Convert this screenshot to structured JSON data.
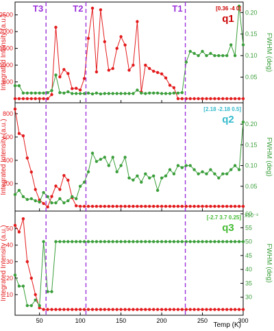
{
  "chart_data": [
    {
      "type": "line",
      "panel_label": "q1",
      "panel_label_color": "#cc0000",
      "q_vector": "[0.36 -4 0]",
      "q_vector_color": "#cc0000",
      "x_ticks": [],
      "ylim_left": [
        0,
        2800
      ],
      "yticks_left": [
        500,
        1000,
        1500,
        2000,
        2500
      ],
      "ylim_right": [
        0,
        0.218
      ],
      "yticks_right": [
        0.05,
        0.1,
        0.15,
        0.2
      ],
      "series": [
        {
          "axis": "left",
          "color": "#e31a1c",
          "x": [
            20,
            25,
            30,
            35,
            40,
            45,
            50,
            55,
            60,
            65,
            70,
            75,
            80,
            85,
            90,
            95,
            100,
            105,
            110,
            115,
            120,
            125,
            130,
            135,
            140,
            145,
            150,
            155,
            160,
            165,
            170,
            175,
            180,
            185,
            190,
            195,
            200,
            205,
            210,
            215,
            220,
            225,
            230,
            235,
            240,
            245,
            250,
            255,
            260,
            265,
            270,
            275,
            280,
            285,
            290,
            295,
            300
          ],
          "y": [
            0,
            0,
            0,
            0,
            0,
            0,
            0,
            0,
            0,
            120,
            2130,
            650,
            870,
            750,
            300,
            310,
            260,
            600,
            1800,
            2700,
            800,
            2650,
            1700,
            850,
            900,
            1500,
            1850,
            1600,
            850,
            1000,
            2300,
            200,
            1000,
            900,
            820,
            780,
            740,
            620,
            400,
            330,
            0,
            0,
            0,
            0,
            0,
            0,
            0,
            0,
            0,
            0,
            0,
            0,
            0,
            0,
            0,
            0,
            0
          ]
        },
        {
          "axis": "right",
          "color": "#3a9e3a",
          "x": [
            20,
            25,
            30,
            35,
            40,
            45,
            50,
            55,
            60,
            65,
            70,
            75,
            80,
            85,
            90,
            95,
            100,
            105,
            110,
            115,
            120,
            125,
            130,
            135,
            140,
            145,
            150,
            155,
            160,
            165,
            170,
            175,
            180,
            185,
            190,
            195,
            200,
            205,
            210,
            215,
            220,
            225,
            230,
            235,
            240,
            245,
            250,
            255,
            260,
            265,
            270,
            275,
            280,
            285,
            290,
            295,
            300
          ],
          "y": [
            0.03,
            0.03,
            0.013,
            0.013,
            0.013,
            0.013,
            0.013,
            0.013,
            0.014,
            0.019,
            0.055,
            0.014,
            0.013,
            0.016,
            0.012,
            0.012,
            0.012,
            0.012,
            0.013,
            0.011,
            0.013,
            0.011,
            0.012,
            0.012,
            0.012,
            0.012,
            0.012,
            0.012,
            0.012,
            0.012,
            0.02,
            0.013,
            0.012,
            0.013,
            0.013,
            0.013,
            0.012,
            0.012,
            0.012,
            0.013,
            0.013,
            0.014,
            0.085,
            0.11,
            0.105,
            0.1,
            0.11,
            0.1,
            0.105,
            0.1,
            0.1,
            0.1,
            0.1,
            0.125,
            0.1,
            0.215,
            0.125
          ]
        }
      ]
    },
    {
      "type": "line",
      "panel_label": "q2",
      "panel_label_color": "#33bbcc",
      "q_vector": "[2.18 -2.18 0.5]",
      "q_vector_color": "#33bbcc",
      "x_ticks": [],
      "ylim_left": [
        0,
        870
      ],
      "yticks_left": [
        200,
        400,
        600,
        800
      ],
      "ylim_right": [
        0,
        0.245
      ],
      "yticks_right": [
        0.05,
        0.1,
        0.15,
        0.2
      ],
      "series": [
        {
          "axis": "left",
          "color": "#e31a1c",
          "x": [
            20,
            25,
            30,
            35,
            40,
            45,
            50,
            55,
            60,
            65,
            70,
            75,
            80,
            85,
            90,
            95,
            100,
            105,
            110,
            115,
            120,
            125,
            130,
            135,
            140,
            145,
            150,
            155,
            160,
            165,
            170,
            175,
            180,
            185,
            190,
            195,
            200,
            205,
            210,
            215,
            220,
            225,
            230,
            235,
            240,
            245,
            250,
            255,
            260,
            265,
            270,
            275,
            280,
            285,
            290,
            295,
            300
          ],
          "y": [
            840,
            630,
            610,
            420,
            300,
            150,
            60,
            30,
            0,
            90,
            180,
            150,
            270,
            230,
            80,
            10,
            5,
            5,
            5,
            5,
            5,
            5,
            5,
            5,
            5,
            5,
            5,
            5,
            5,
            5,
            5,
            5,
            5,
            5,
            5,
            5,
            5,
            5,
            5,
            5,
            5,
            5,
            5,
            5,
            5,
            5,
            5,
            5,
            5,
            5,
            5,
            5,
            5,
            5,
            5,
            5,
            5
          ]
        },
        {
          "axis": "right",
          "color": "#3a9e3a",
          "x": [
            20,
            25,
            30,
            35,
            40,
            45,
            50,
            55,
            60,
            65,
            70,
            75,
            80,
            85,
            90,
            95,
            100,
            105,
            110,
            115,
            120,
            125,
            130,
            135,
            140,
            145,
            150,
            155,
            160,
            165,
            170,
            175,
            180,
            185,
            190,
            195,
            200,
            205,
            210,
            215,
            220,
            225,
            230,
            235,
            240,
            245,
            250,
            255,
            260,
            265,
            270,
            275,
            280,
            285,
            290,
            295,
            300
          ],
          "y": [
            0.03,
            0.04,
            0.025,
            0.018,
            0.02,
            0.015,
            0.012,
            0.035,
            0.025,
            0.01,
            0.01,
            0.02,
            0.01,
            0.015,
            0.025,
            0.02,
            0.05,
            0.06,
            0.085,
            0.13,
            0.11,
            0.115,
            0.12,
            0.1,
            0.12,
            0.085,
            0.1,
            0.12,
            0.07,
            0.065,
            0.075,
            0.06,
            0.08,
            0.07,
            0.075,
            0.04,
            0.07,
            0.075,
            0.09,
            0.08,
            0.1,
            0.095,
            0.1,
            0.1,
            0.09,
            0.08,
            0.085,
            0.08,
            0.09,
            0.08,
            0.07,
            0.08,
            0.08,
            0.09,
            0.1,
            0.09,
            0.205
          ]
        }
      ]
    },
    {
      "type": "line",
      "panel_label": "q3",
      "panel_label_color": "#44bb33",
      "q_vector": "[-2.7 3.7 0.25]",
      "q_vector_color": "#44bb33",
      "x_ticks": [
        50,
        100,
        150,
        200,
        250,
        300
      ],
      "xlabel": "Temp (K)",
      "xlim": [
        20,
        300
      ],
      "ylim_left": [
        0,
        59
      ],
      "yticks_left": [
        10,
        20,
        30,
        40,
        50
      ],
      "ylim_right": [
        25,
        60
      ],
      "yticks_right": [
        30,
        35,
        40,
        45,
        50,
        55,
        60
      ],
      "right_exponent": "x10⁻³",
      "series": [
        {
          "axis": "left",
          "color": "#e31a1c",
          "x": [
            20,
            25,
            30,
            35,
            40,
            45,
            50,
            55,
            60,
            65,
            70,
            75,
            80,
            85,
            90,
            95,
            100,
            105,
            110,
            115,
            120,
            125,
            130,
            135,
            140,
            145,
            150,
            155,
            160,
            165,
            170,
            175,
            180,
            185,
            190,
            195,
            200,
            205,
            210,
            215,
            220,
            225,
            230,
            235,
            240,
            245,
            250,
            255,
            260,
            265,
            270,
            275,
            280,
            285,
            290,
            295,
            300
          ],
          "y": [
            52,
            48,
            56,
            30,
            20,
            10,
            2,
            1,
            1,
            1,
            1,
            1,
            1,
            1,
            1,
            1,
            1,
            1,
            1,
            1,
            1,
            1,
            1,
            1,
            1,
            1,
            1,
            1,
            1,
            1,
            1,
            1,
            1,
            1,
            1,
            1,
            1,
            1,
            1,
            1,
            1,
            1,
            1,
            1,
            1,
            1,
            1,
            1,
            1,
            1,
            1,
            1,
            1,
            1,
            1,
            1,
            1
          ]
        },
        {
          "axis": "right",
          "color": "#3a9e3a",
          "x": [
            20,
            25,
            30,
            35,
            40,
            45,
            50,
            55,
            60,
            65,
            70,
            75,
            80,
            85,
            90,
            95,
            100,
            105,
            110,
            115,
            120,
            125,
            130,
            135,
            140,
            145,
            150,
            155,
            160,
            165,
            170,
            175,
            180,
            185,
            190,
            195,
            200,
            205,
            210,
            215,
            220,
            225,
            230,
            235,
            240,
            245,
            250,
            255,
            260,
            265,
            270,
            275,
            280,
            285,
            290,
            295,
            300
          ],
          "y": [
            38,
            34,
            34,
            27,
            27,
            29,
            27,
            50,
            32,
            32,
            50,
            50,
            50,
            50,
            50,
            50,
            50,
            50,
            50,
            50,
            50,
            50,
            50,
            50,
            50,
            50,
            50,
            50,
            50,
            50,
            50,
            50,
            50,
            50,
            50,
            50,
            50,
            50,
            50,
            50,
            50,
            50,
            50,
            50,
            50,
            50,
            50,
            50,
            50,
            50,
            50,
            50,
            50,
            50,
            50,
            50,
            50
          ]
        }
      ]
    }
  ],
  "transitions": [
    {
      "label": "T3",
      "x": 58
    },
    {
      "label": "T2",
      "x": 107
    },
    {
      "label": "T1",
      "x": 229
    }
  ],
  "left_ylabel": "Integrated Intensity (a.u.)",
  "right_ylabel": "FWHM (deg)",
  "colors": {
    "intensity": "#e31a1c",
    "fwhm": "#3a9e3a",
    "transition": "#9b30d9",
    "frame": "#000000"
  }
}
